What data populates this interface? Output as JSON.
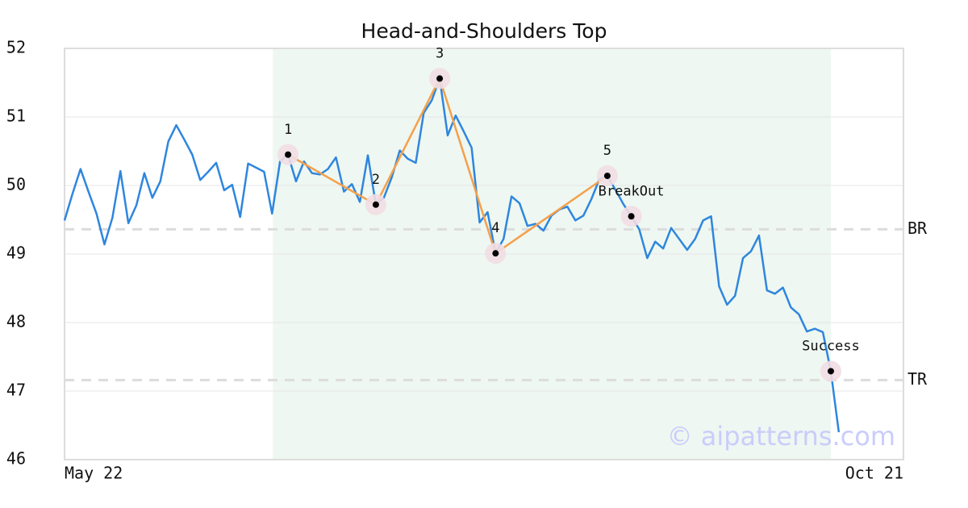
{
  "chart_data": {
    "type": "line",
    "title": "Head-and-Shoulders Top",
    "color": "#2e86de",
    "pattern_color": "#f5a04a",
    "values": [
      49.49,
      49.88,
      50.24,
      49.91,
      49.59,
      49.14,
      49.53,
      50.21,
      49.45,
      49.71,
      50.18,
      49.82,
      50.06,
      50.64,
      50.88,
      50.67,
      50.45,
      50.08,
      50.2,
      50.33,
      49.93,
      50.01,
      49.54,
      50.32,
      50.26,
      50.2,
      49.59,
      50.35,
      50.45,
      50.06,
      50.35,
      50.18,
      50.16,
      50.24,
      50.41,
      49.91,
      50.02,
      49.76,
      50.44,
      49.72,
      49.82,
      50.12,
      50.51,
      50.39,
      50.33,
      51.06,
      51.24,
      51.56,
      50.73,
      51.02,
      50.79,
      50.55,
      49.46,
      49.61,
      49.01,
      49.22,
      49.84,
      49.74,
      49.41,
      49.44,
      49.34,
      49.56,
      49.65,
      49.69,
      49.49,
      49.56,
      49.8,
      50.09,
      50.14,
      49.94,
      49.73,
      49.55,
      49.36,
      48.94,
      49.18,
      49.08,
      49.38,
      49.22,
      49.06,
      49.22,
      49.49,
      49.55,
      48.53,
      48.26,
      48.39,
      48.94,
      49.04,
      49.27,
      48.47,
      48.42,
      48.51,
      48.22,
      48.12,
      47.87,
      47.91,
      47.86,
      47.29,
      46.4
    ],
    "xlim": [
      0,
      105.1
    ],
    "xticks": [
      {
        "value": 0,
        "label": "May 22"
      },
      {
        "value": 105.1,
        "label": "Oct 21"
      }
    ],
    "ylim": [
      46,
      52
    ],
    "yticks": [
      46,
      47,
      48,
      49,
      50,
      51,
      52
    ],
    "grid": true,
    "highlight_range": [
      26.1,
      96
    ],
    "points": [
      {
        "label": "1",
        "index": 28,
        "value": 50.45
      },
      {
        "label": "2",
        "index": 39,
        "value": 49.72
      },
      {
        "label": "3",
        "index": 47,
        "value": 51.56
      },
      {
        "label": "4",
        "index": 54,
        "value": 49.01
      },
      {
        "label": "5",
        "index": 68,
        "value": 50.14
      },
      {
        "label": "BreakOut",
        "index": 71,
        "value": 49.55
      },
      {
        "label": "Success",
        "index": 96,
        "value": 47.29
      }
    ],
    "pattern_points": 5,
    "levels": [
      {
        "label": "BR",
        "value": 49.36
      },
      {
        "label": "TR",
        "value": 47.16
      }
    ],
    "watermark": "© aipatterns.com"
  }
}
